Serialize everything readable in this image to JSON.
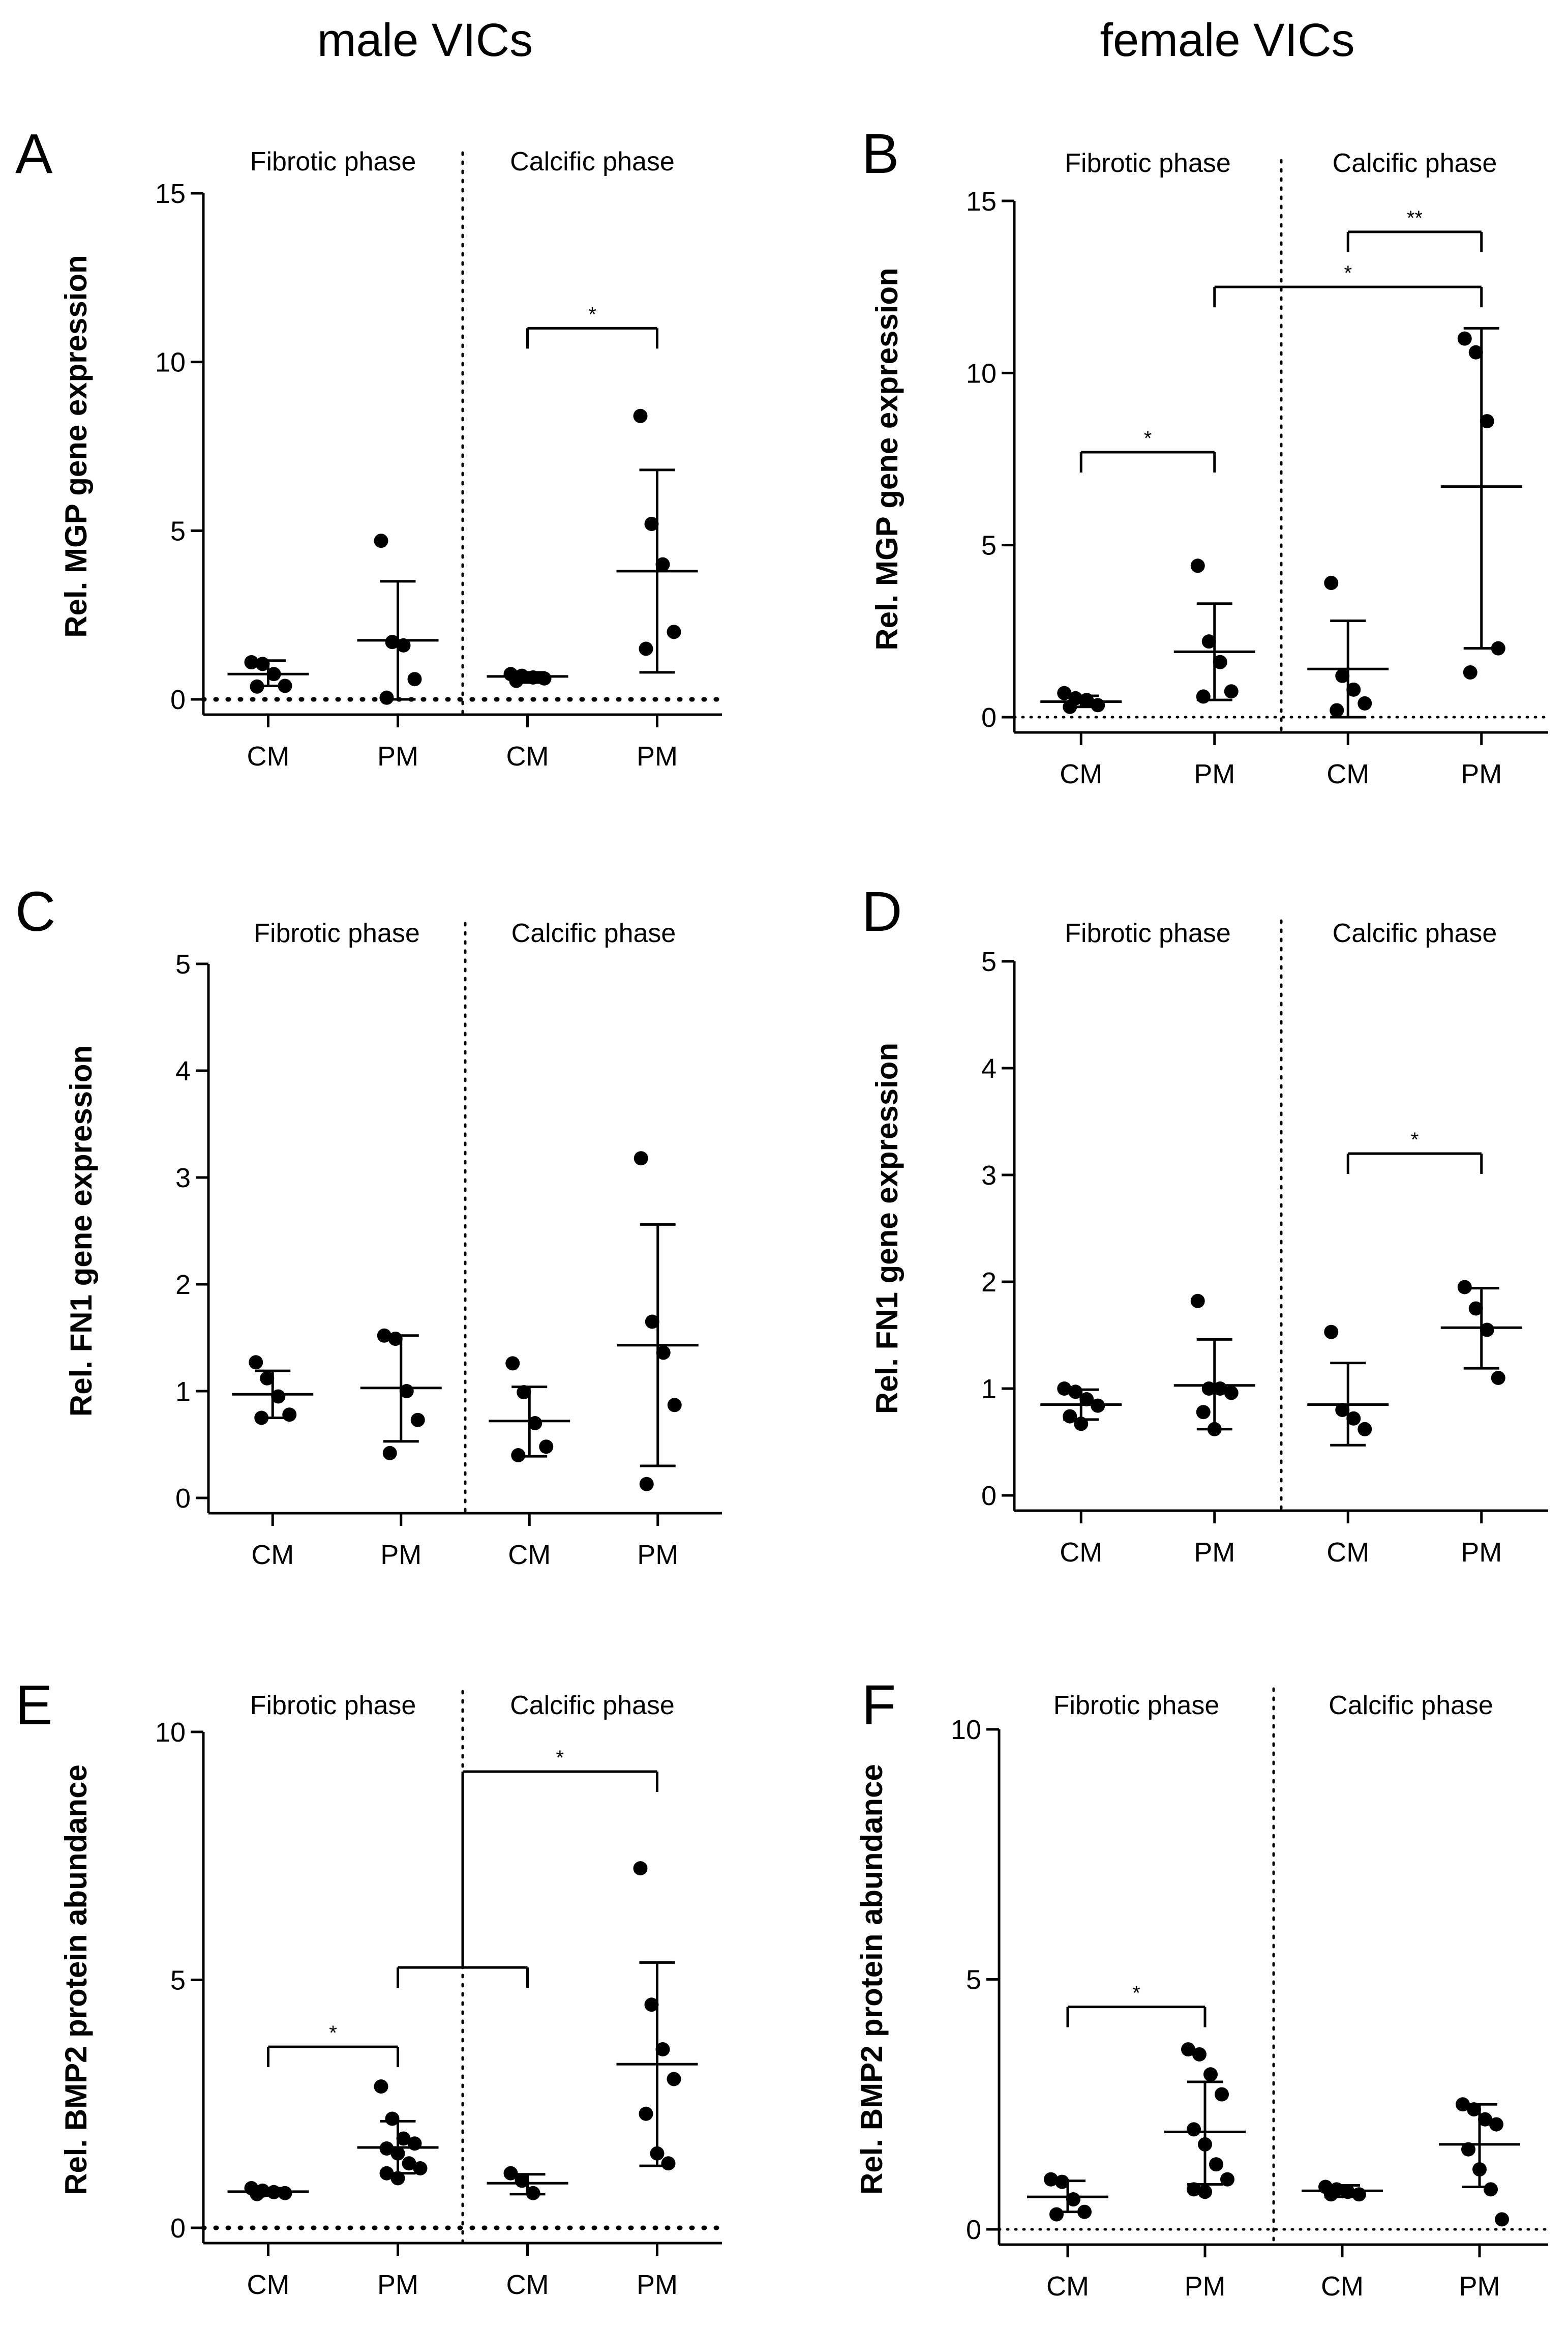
{
  "column_titles": [
    "male VICs",
    "female VICs"
  ],
  "chart_data": [
    {
      "panel": "A",
      "type": "scatter",
      "ylabel": "Rel. MGP gene expression",
      "ylim": [
        0,
        15
      ],
      "yticks": [
        "0",
        "5",
        "10",
        "15"
      ],
      "phases": [
        "Fibrotic phase",
        "Calcific phase"
      ],
      "categories": [
        "CM",
        "PM",
        "CM",
        "PM"
      ],
      "groups": [
        {
          "points": [
            1.1,
            1.05,
            0.75,
            0.4,
            0.38
          ],
          "mean": 0.75,
          "err_low": 0.4,
          "err_high": 1.15
        },
        {
          "points": [
            4.7,
            1.7,
            1.6,
            0.6,
            0.05
          ],
          "mean": 1.75,
          "err_low": 0.0,
          "err_high": 3.5
        },
        {
          "points": [
            0.75,
            0.7,
            0.65,
            0.62,
            0.55
          ],
          "mean": 0.68,
          "err_low": 0.5,
          "err_high": 0.8
        },
        {
          "points": [
            8.4,
            5.2,
            4.0,
            2.0,
            1.5
          ],
          "mean": 3.8,
          "err_low": 0.8,
          "err_high": 6.8
        }
      ],
      "significance": [
        {
          "from": 2,
          "to": 3,
          "y": 11.0,
          "label": "*"
        }
      ],
      "zero_line": "bold"
    },
    {
      "panel": "B",
      "type": "scatter",
      "ylabel": "Rel. MGP gene expression",
      "ylim": [
        0,
        15
      ],
      "yticks": [
        "0",
        "5",
        "10",
        "15"
      ],
      "phases": [
        "Fibrotic phase",
        "Calcific phase"
      ],
      "categories": [
        "CM",
        "PM",
        "CM",
        "PM"
      ],
      "groups": [
        {
          "points": [
            0.7,
            0.55,
            0.5,
            0.35,
            0.3
          ],
          "mean": 0.45,
          "err_low": 0.3,
          "err_high": 0.62
        },
        {
          "points": [
            4.4,
            2.2,
            1.6,
            0.75,
            0.6
          ],
          "mean": 1.9,
          "err_low": 0.5,
          "err_high": 3.3
        },
        {
          "points": [
            3.9,
            1.2,
            0.8,
            0.4,
            0.2
          ],
          "mean": 1.4,
          "err_low": 0.0,
          "err_high": 2.8
        },
        {
          "points": [
            11.0,
            10.6,
            8.6,
            2.0,
            1.3
          ],
          "mean": 6.7,
          "err_low": 2.0,
          "err_high": 11.3
        }
      ],
      "significance": [
        {
          "from": 0,
          "to": 1,
          "y": 7.7,
          "label": "*"
        },
        {
          "from": 1,
          "to": 3,
          "y": 12.5,
          "label": "*"
        },
        {
          "from": 2,
          "to": 3,
          "y": 14.1,
          "label": "**"
        }
      ],
      "zero_line": "dotted"
    },
    {
      "panel": "C",
      "type": "scatter",
      "ylabel": "Rel. FN1 gene expression",
      "ylim": [
        0,
        5
      ],
      "yticks": [
        "0",
        "1",
        "2",
        "3",
        "4",
        "5"
      ],
      "phases": [
        "Fibrotic phase",
        "Calcific phase"
      ],
      "categories": [
        "CM",
        "PM",
        "CM",
        "PM"
      ],
      "groups": [
        {
          "points": [
            1.27,
            1.12,
            0.95,
            0.78,
            0.75
          ],
          "mean": 0.97,
          "err_low": 0.75,
          "err_high": 1.19
        },
        {
          "points": [
            1.52,
            1.49,
            1.0,
            0.73,
            0.42
          ],
          "mean": 1.03,
          "err_low": 0.53,
          "err_high": 1.52
        },
        {
          "points": [
            1.26,
            0.99,
            0.7,
            0.48,
            0.4
          ],
          "mean": 0.72,
          "err_low": 0.39,
          "err_high": 1.04
        },
        {
          "points": [
            3.18,
            1.65,
            1.36,
            0.87,
            0.13
          ],
          "mean": 1.43,
          "err_low": 0.3,
          "err_high": 2.56
        }
      ],
      "significance": [],
      "zero_line": "none"
    },
    {
      "panel": "D",
      "type": "scatter",
      "ylabel": "Rel. FN1 gene expression",
      "ylim": [
        0,
        5
      ],
      "yticks": [
        "0",
        "1",
        "2",
        "3",
        "4",
        "5"
      ],
      "phases": [
        "Fibrotic phase",
        "Calcific phase"
      ],
      "categories": [
        "CM",
        "PM",
        "CM",
        "PM"
      ],
      "groups": [
        {
          "points": [
            1.0,
            0.97,
            0.9,
            0.84,
            0.74,
            0.67
          ],
          "mean": 0.85,
          "err_low": 0.71,
          "err_high": 0.99
        },
        {
          "points": [
            1.82,
            1.0,
            1.0,
            0.96,
            0.78,
            0.62
          ],
          "mean": 1.03,
          "err_low": 0.62,
          "err_high": 1.46
        },
        {
          "points": [
            1.53,
            0.8,
            0.72,
            0.62
          ],
          "mean": 0.85,
          "err_low": 0.47,
          "err_high": 1.24
        },
        {
          "points": [
            1.95,
            1.75,
            1.55,
            1.1
          ],
          "mean": 1.57,
          "err_low": 1.19,
          "err_high": 1.94
        }
      ],
      "significance": [
        {
          "from": 2,
          "to": 3,
          "y": 3.2,
          "label": "*"
        }
      ],
      "zero_line": "none"
    },
    {
      "panel": "E",
      "type": "scatter",
      "ylabel": "Rel. BMP2 protein abundance",
      "ylim": [
        0,
        10
      ],
      "yticks": [
        "0",
        "5",
        "10"
      ],
      "phases": [
        "Fibrotic phase",
        "Calcific phase"
      ],
      "categories": [
        "CM",
        "PM",
        "CM",
        "PM"
      ],
      "groups": [
        {
          "points": [
            0.8,
            0.75,
            0.72,
            0.7,
            0.68
          ],
          "mean": 0.73,
          "err_low": 0.65,
          "err_high": 0.8
        },
        {
          "points": [
            2.85,
            2.2,
            1.8,
            1.7,
            1.6,
            1.5,
            1.3,
            1.2,
            1.1,
            1.0
          ],
          "mean": 1.62,
          "err_low": 1.1,
          "err_high": 2.15
        },
        {
          "points": [
            1.1,
            0.95,
            0.7
          ],
          "mean": 0.9,
          "err_low": 0.68,
          "err_high": 1.08
        },
        {
          "points": [
            7.25,
            4.5,
            3.6,
            3.0,
            2.3,
            1.5,
            1.3
          ],
          "mean": 3.3,
          "err_low": 1.25,
          "err_high": 5.35
        }
      ],
      "significance": [
        {
          "from": 0,
          "to": 1,
          "y": 3.65,
          "label": "*"
        },
        {
          "from": 1,
          "to": 2,
          "y": 5.25,
          "label": "",
          "bracket_down": true
        },
        {
          "from": 1.5,
          "to": 3,
          "y": 9.2,
          "label": "*",
          "left_down_to": 5.25
        }
      ],
      "zero_line": "bold"
    },
    {
      "panel": "F",
      "type": "scatter",
      "ylabel": "Rel. BMP2 protein abundance",
      "ylim": [
        0,
        10
      ],
      "yticks": [
        "0",
        "5",
        "10"
      ],
      "phases": [
        "Fibrotic phase",
        "Calcific phase"
      ],
      "categories": [
        "CM",
        "PM",
        "CM",
        "PM"
      ],
      "groups": [
        {
          "points": [
            1.0,
            0.95,
            0.6,
            0.35,
            0.3
          ],
          "mean": 0.65,
          "err_low": 0.35,
          "err_high": 0.97
        },
        {
          "points": [
            3.6,
            3.5,
            3.1,
            2.7,
            2.0,
            1.7,
            1.3,
            1.0,
            0.8,
            0.75
          ],
          "mean": 1.95,
          "err_low": 0.9,
          "err_high": 2.95
        },
        {
          "points": [
            0.85,
            0.8,
            0.75,
            0.7,
            0.7
          ],
          "mean": 0.77,
          "err_low": 0.65,
          "err_high": 0.88
        },
        {
          "points": [
            2.5,
            2.4,
            2.2,
            2.1,
            1.6,
            1.2,
            0.8,
            0.2
          ],
          "mean": 1.7,
          "err_low": 0.85,
          "err_high": 2.5
        }
      ],
      "significance": [
        {
          "from": 0,
          "to": 1,
          "y": 4.45,
          "label": "*"
        }
      ],
      "zero_line": "dotted"
    }
  ]
}
